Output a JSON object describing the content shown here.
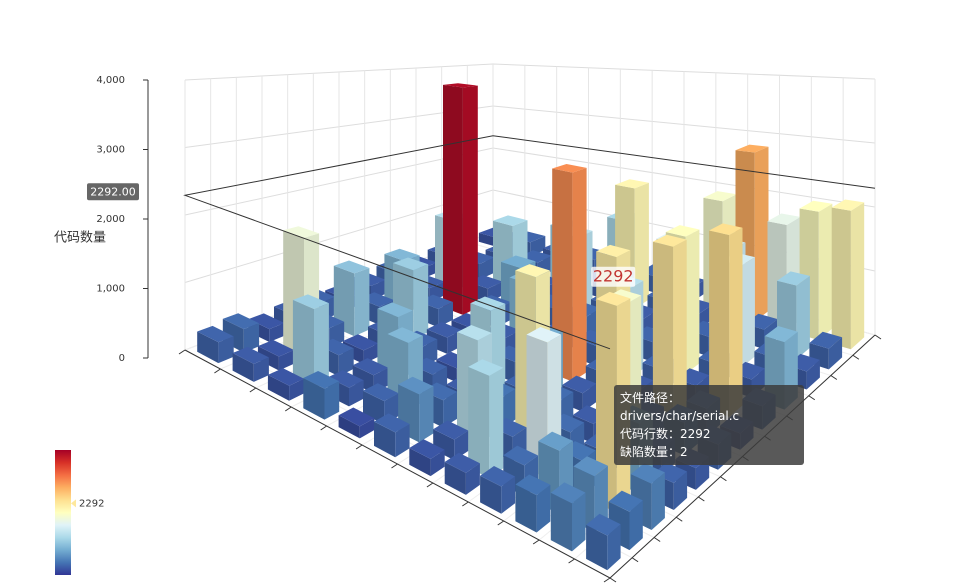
{
  "chart_data": {
    "type": "bar3d",
    "z_axis_name": "代码数量",
    "zlim": [
      0,
      4000
    ],
    "zticks": [
      0,
      {
        "value": 1000,
        "label": "1,000"
      },
      {
        "value": 2000,
        "label": "2,000"
      },
      {
        "value": 3000,
        "label": "3,000"
      },
      {
        "value": 4000,
        "label": "4,000"
      }
    ],
    "grid": true,
    "x_categories": [
      null,
      null,
      null,
      null,
      null,
      null,
      null,
      null,
      null,
      null,
      null,
      null
    ],
    "y_categories": [
      null,
      null,
      null,
      null,
      null,
      null,
      null,
      null,
      null,
      null,
      null,
      null
    ],
    "values": [
      [
        300,
        250,
        200,
        400,
        150,
        300,
        200,
        250,
        300,
        400,
        500,
        350
      ],
      [
        350,
        200,
        1100,
        250,
        300,
        600,
        250,
        1200,
        350,
        700,
        600,
        400
      ],
      [
        200,
        1800,
        300,
        250,
        900,
        350,
        1300,
        300,
        1600,
        400,
        2292,
        500
      ],
      [
        250,
        300,
        200,
        900,
        300,
        250,
        400,
        2100,
        350,
        300,
        800,
        300
      ],
      [
        300,
        1000,
        250,
        300,
        200,
        1200,
        300,
        350,
        250,
        1900,
        300,
        250
      ],
      [
        200,
        300,
        1100,
        250,
        350,
        300,
        800,
        250,
        2200,
        300,
        400,
        300
      ],
      [
        250,
        900,
        300,
        200,
        250,
        400,
        3000,
        300,
        250,
        2300,
        350,
        200
      ],
      [
        300,
        250,
        3900,
        300,
        900,
        250,
        300,
        1300,
        300,
        250,
        2400,
        300
      ],
      [
        200,
        1300,
        250,
        800,
        300,
        350,
        1100,
        300,
        2000,
        300,
        250,
        900
      ],
      [
        250,
        300,
        1200,
        250,
        1300,
        300,
        250,
        1600,
        300,
        1500,
        300,
        250
      ],
      [
        null,
        250,
        300,
        1100,
        250,
        2100,
        300,
        250,
        1400,
        300,
        1100,
        300
      ],
      [
        200,
        300,
        250,
        300,
        1200,
        300,
        250,
        1900,
        2800,
        1700,
        2000,
        2100
      ]
    ],
    "visual_map": {
      "range": [
        0,
        4000
      ],
      "colors": [
        "#313695",
        "#4575b4",
        "#74add1",
        "#abd9e9",
        "#e0f3f8",
        "#ffffbf",
        "#fee090",
        "#fdae61",
        "#f46d43",
        "#d73027",
        "#a50026"
      ],
      "indicator": {
        "value": 2292,
        "label": "2292"
      }
    },
    "axis_pointer": {
      "value": 2292,
      "label": "2292.00"
    },
    "bar_label": {
      "value": 2292,
      "label": "2292"
    },
    "tooltip": [
      "文件路径：drivers/char/serial.c",
      "代码行数：2292",
      "缺陷数量：2"
    ]
  }
}
